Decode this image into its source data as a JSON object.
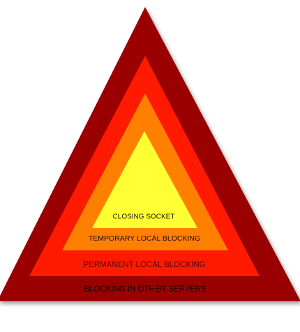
{
  "layers": [
    {
      "name": "outer",
      "label": "BLOCKING IN OTHER SERVERS",
      "fill": "#9a0000",
      "text_color": "#1a0000"
    },
    {
      "name": "second",
      "label": "PERMANENT LOCAL BLOCKING",
      "fill": "#ff1a00",
      "text_color": "#5a0000"
    },
    {
      "name": "third",
      "label": "TEMPORARY LOCAL BLOCKING",
      "fill": "#ff8000",
      "text_color": "#1a0a00"
    },
    {
      "name": "inner",
      "label": "CLOSING SOCKET",
      "fill": "#ffff33",
      "text_color": "#1a1a00"
    }
  ]
}
